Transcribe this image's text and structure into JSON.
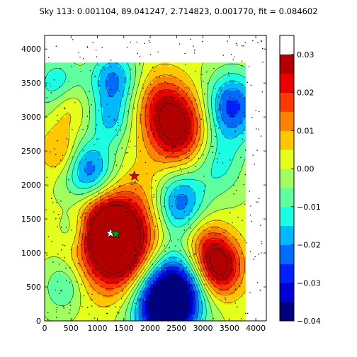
{
  "chart_data": {
    "type": "heatmap",
    "title": "Sky 113: 0.001104, 89.041247, 2.714823, 0.001770, fit = 0.084602",
    "xlabel": "",
    "ylabel": "",
    "xlim": [
      0,
      4200
    ],
    "ylim": [
      0,
      4200
    ],
    "x_ticks": [
      0,
      500,
      1000,
      1500,
      2000,
      2500,
      3000,
      3500,
      4000
    ],
    "y_ticks": [
      0,
      500,
      1000,
      1500,
      2000,
      2500,
      3000,
      3500,
      4000
    ],
    "data_extent": {
      "x": [
        0,
        3800
      ],
      "y": [
        0,
        3800
      ]
    },
    "colorbar": {
      "range": [
        -0.04,
        0.035
      ],
      "ticks": [
        "0.03",
        "0.02",
        "0.01",
        "0.00",
        "−0.01",
        "−0.02",
        "−0.03",
        "−0.04"
      ],
      "levels": [
        -0.04,
        -0.035,
        -0.03,
        -0.025,
        -0.02,
        -0.015,
        -0.01,
        -0.005,
        0,
        0.005,
        0.01,
        0.015,
        0.02,
        0.025,
        0.03,
        0.035
      ],
      "colors": [
        "#00007f",
        "#0000d5",
        "#0020ff",
        "#006cff",
        "#00b8ff",
        "#1affe4",
        "#5fffa0",
        "#a0ff5f",
        "#e4ff1a",
        "#ffc700",
        "#ff8200",
        "#ff3a00",
        "#ea0000",
        "#b20000"
      ]
    },
    "blobs": [
      {
        "x": 1400,
        "y": 1100,
        "amp": 0.045,
        "sigma": 450
      },
      {
        "x": 1100,
        "y": 1450,
        "amp": 0.018,
        "sigma": 350
      },
      {
        "x": 2500,
        "y": 2850,
        "amp": 0.032,
        "sigma": 380
      },
      {
        "x": 2150,
        "y": 3250,
        "amp": 0.012,
        "sigma": 320
      },
      {
        "x": 3300,
        "y": 800,
        "amp": 0.034,
        "sigma": 300
      },
      {
        "x": 3000,
        "y": 1150,
        "amp": 0.012,
        "sigma": 280
      },
      {
        "x": 2300,
        "y": 250,
        "amp": -0.05,
        "sigma": 430
      },
      {
        "x": 2600,
        "y": 550,
        "amp": -0.012,
        "sigma": 380
      },
      {
        "x": 2550,
        "y": 1750,
        "amp": -0.025,
        "sigma": 330
      },
      {
        "x": 3550,
        "y": 3150,
        "amp": -0.028,
        "sigma": 360
      },
      {
        "x": 3300,
        "y": 2300,
        "amp": -0.012,
        "sigma": 330
      },
      {
        "x": 850,
        "y": 2200,
        "amp": -0.025,
        "sigma": 330
      },
      {
        "x": 1300,
        "y": 3550,
        "amp": -0.022,
        "sigma": 320
      },
      {
        "x": 1250,
        "y": 2950,
        "amp": -0.014,
        "sigma": 250
      },
      {
        "x": 250,
        "y": 3450,
        "amp": -0.018,
        "sigma": 300
      },
      {
        "x": 400,
        "y": 3200,
        "amp": 0.012,
        "sigma": 250
      },
      {
        "x": 300,
        "y": 2500,
        "amp": 0.012,
        "sigma": 250
      },
      {
        "x": 350,
        "y": 500,
        "amp": -0.012,
        "sigma": 250
      },
      {
        "x": 600,
        "y": 1350,
        "amp": -0.01,
        "sigma": 220
      },
      {
        "x": 1900,
        "y": 1850,
        "amp": 0.006,
        "sigma": 400
      }
    ],
    "markers": [
      {
        "x": 1700,
        "y": 2130,
        "color": "#e00000",
        "label": "red-star"
      },
      {
        "x": 1250,
        "y": 1290,
        "color": "#ffffff",
        "label": "white-star"
      },
      {
        "x": 1350,
        "y": 1280,
        "color": "#00a000",
        "label": "green-star"
      }
    ]
  }
}
